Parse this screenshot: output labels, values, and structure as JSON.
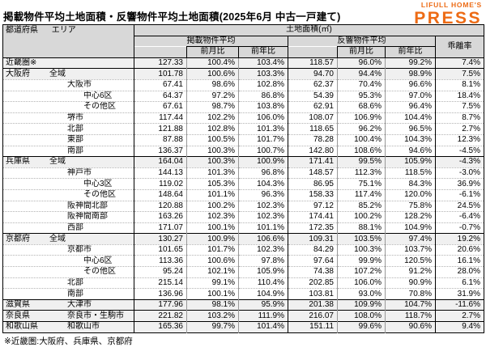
{
  "page": {
    "title": "掲載物件平均土地面積・反響物件平均土地面積(2025年6月 中古一戸建て)",
    "footnote": "※近畿圏:大阪府、兵庫県、京都府"
  },
  "logo": {
    "brand": "LIFULL HOME'S",
    "name": "PRESS",
    "color": "#ED6B15"
  },
  "colors": {
    "header_bg": "#d8d8d8",
    "highlight_row_bg": "#f0f0f0",
    "brand_orange": "#ED6B15"
  },
  "table_headers": {
    "pref": "都道府県",
    "area": "エリア",
    "group": "土地面積(㎡)",
    "listed": "掲載物件平均",
    "response": "反響物件平均",
    "deviation": "乖離率",
    "mom": "前月比",
    "yoy": "前年比"
  },
  "chart_data": {
    "type": "table",
    "title": "掲載物件平均土地面積・反響物件平均土地面積(2025年6月 中古一戸建て)",
    "columns": [
      "都道府県",
      "エリア",
      "掲載物件平均",
      "掲載物件平均 前月比",
      "掲載物件平均 前年比",
      "反響物件平均",
      "反響物件平均 前月比",
      "反響物件平均 前年比",
      "乖離率"
    ],
    "unit": "㎡",
    "rows": [
      {
        "pref": "近畿圏※",
        "area": "",
        "indent": 0,
        "highlight": true,
        "group_start": true,
        "values": [
          "127.33",
          "100.4%",
          "103.4%",
          "118.57",
          "96.0%",
          "99.2%",
          "7.4%"
        ]
      },
      {
        "pref": "大阪府",
        "area": "全域",
        "indent": 1,
        "highlight": true,
        "group_start": true,
        "values": [
          "101.78",
          "100.6%",
          "103.3%",
          "94.70",
          "94.4%",
          "98.9%",
          "7.5%"
        ]
      },
      {
        "pref": "",
        "area": "大阪市",
        "indent": 2,
        "highlight": false,
        "group_start": false,
        "values": [
          "67.41",
          "98.6%",
          "102.8%",
          "62.37",
          "70.4%",
          "96.6%",
          "8.1%"
        ]
      },
      {
        "pref": "",
        "area": "中心6区",
        "indent": 3,
        "highlight": false,
        "group_start": false,
        "values": [
          "64.37",
          "97.2%",
          "86.8%",
          "54.39",
          "95.3%",
          "97.0%",
          "18.4%"
        ]
      },
      {
        "pref": "",
        "area": "その他区",
        "indent": 3,
        "highlight": false,
        "group_start": false,
        "values": [
          "67.61",
          "98.7%",
          "103.8%",
          "62.91",
          "68.6%",
          "96.4%",
          "7.5%"
        ]
      },
      {
        "pref": "",
        "area": "堺市",
        "indent": 2,
        "highlight": false,
        "group_start": false,
        "values": [
          "117.44",
          "102.2%",
          "106.0%",
          "108.07",
          "106.9%",
          "104.4%",
          "8.7%"
        ]
      },
      {
        "pref": "",
        "area": "北部",
        "indent": 2,
        "highlight": false,
        "group_start": false,
        "values": [
          "121.88",
          "102.8%",
          "101.3%",
          "118.65",
          "96.2%",
          "96.5%",
          "2.7%"
        ]
      },
      {
        "pref": "",
        "area": "東部",
        "indent": 2,
        "highlight": false,
        "group_start": false,
        "values": [
          "87.88",
          "100.5%",
          "101.7%",
          "78.28",
          "100.4%",
          "104.3%",
          "12.3%"
        ]
      },
      {
        "pref": "",
        "area": "南部",
        "indent": 2,
        "highlight": false,
        "group_start": false,
        "values": [
          "136.37",
          "100.3%",
          "100.7%",
          "142.80",
          "108.6%",
          "94.6%",
          "-4.5%"
        ]
      },
      {
        "pref": "兵庫県",
        "area": "全域",
        "indent": 1,
        "highlight": true,
        "group_start": true,
        "values": [
          "164.04",
          "100.3%",
          "100.9%",
          "171.41",
          "99.5%",
          "105.9%",
          "-4.3%"
        ]
      },
      {
        "pref": "",
        "area": "神戸市",
        "indent": 2,
        "highlight": false,
        "group_start": false,
        "values": [
          "144.13",
          "101.3%",
          "96.8%",
          "148.57",
          "112.3%",
          "118.5%",
          "-3.0%"
        ]
      },
      {
        "pref": "",
        "area": "中心3区",
        "indent": 3,
        "highlight": false,
        "group_start": false,
        "values": [
          "119.02",
          "105.3%",
          "104.3%",
          "86.95",
          "75.1%",
          "84.3%",
          "36.9%"
        ]
      },
      {
        "pref": "",
        "area": "その他区",
        "indent": 3,
        "highlight": false,
        "group_start": false,
        "values": [
          "148.64",
          "101.1%",
          "96.3%",
          "158.33",
          "117.4%",
          "120.0%",
          "-6.1%"
        ]
      },
      {
        "pref": "",
        "area": "阪神間北部",
        "indent": 2,
        "highlight": false,
        "group_start": false,
        "values": [
          "120.88",
          "100.2%",
          "102.3%",
          "97.12",
          "85.2%",
          "75.8%",
          "24.5%"
        ]
      },
      {
        "pref": "",
        "area": "阪神間南部",
        "indent": 2,
        "highlight": false,
        "group_start": false,
        "values": [
          "163.26",
          "102.3%",
          "102.3%",
          "174.41",
          "100.2%",
          "128.2%",
          "-6.4%"
        ]
      },
      {
        "pref": "",
        "area": "西部",
        "indent": 2,
        "highlight": false,
        "group_start": false,
        "values": [
          "171.07",
          "100.1%",
          "101.1%",
          "172.35",
          "88.1%",
          "104.9%",
          "-0.7%"
        ]
      },
      {
        "pref": "京都府",
        "area": "全域",
        "indent": 1,
        "highlight": true,
        "group_start": true,
        "values": [
          "130.27",
          "100.9%",
          "106.6%",
          "109.31",
          "103.5%",
          "97.4%",
          "19.2%"
        ]
      },
      {
        "pref": "",
        "area": "京都市",
        "indent": 2,
        "highlight": false,
        "group_start": false,
        "values": [
          "101.65",
          "101.7%",
          "102.3%",
          "84.29",
          "100.3%",
          "103.7%",
          "20.6%"
        ]
      },
      {
        "pref": "",
        "area": "中心6区",
        "indent": 3,
        "highlight": false,
        "group_start": false,
        "values": [
          "113.36",
          "100.6%",
          "97.8%",
          "97.64",
          "99.9%",
          "120.5%",
          "16.1%"
        ]
      },
      {
        "pref": "",
        "area": "その他区",
        "indent": 3,
        "highlight": false,
        "group_start": false,
        "values": [
          "95.24",
          "102.1%",
          "105.9%",
          "74.38",
          "107.2%",
          "91.2%",
          "28.0%"
        ]
      },
      {
        "pref": "",
        "area": "北部",
        "indent": 2,
        "highlight": false,
        "group_start": false,
        "values": [
          "215.14",
          "99.1%",
          "110.4%",
          "202.85",
          "106.0%",
          "90.9%",
          "6.1%"
        ]
      },
      {
        "pref": "",
        "area": "南部",
        "indent": 2,
        "highlight": false,
        "group_start": false,
        "values": [
          "136.96",
          "100.1%",
          "104.9%",
          "103.81",
          "93.0%",
          "70.8%",
          "31.9%"
        ]
      },
      {
        "pref": "滋賀県",
        "area": "大津市",
        "indent": 2,
        "highlight": true,
        "group_start": true,
        "values": [
          "177.96",
          "98.1%",
          "95.9%",
          "201.38",
          "109.9%",
          "104.7%",
          "-11.6%"
        ]
      },
      {
        "pref": "奈良県",
        "area": "奈良市・生駒市",
        "indent": 2,
        "highlight": true,
        "group_start": true,
        "values": [
          "221.82",
          "103.2%",
          "111.9%",
          "216.07",
          "108.0%",
          "118.7%",
          "2.7%"
        ]
      },
      {
        "pref": "和歌山県",
        "area": "和歌山市",
        "indent": 2,
        "highlight": true,
        "group_start": true,
        "values": [
          "165.36",
          "99.7%",
          "101.4%",
          "151.11",
          "99.6%",
          "90.6%",
          "9.4%"
        ]
      }
    ]
  }
}
